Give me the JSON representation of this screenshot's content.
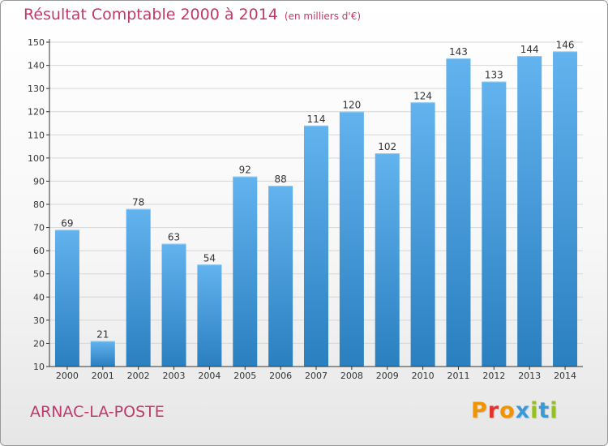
{
  "header": {
    "title": "Résultat Comptable 2000 à 2014",
    "unit": "(en milliers d'€)"
  },
  "footer": {
    "commune": "ARNAC-LA-POSTE",
    "brand": "Proxiti",
    "brand_colors": [
      "#f29400",
      "#e6332a",
      "#f29400",
      "#3a9ad9",
      "#95c11f",
      "#3a9ad9",
      "#95c11f"
    ]
  },
  "colors": {
    "title": "#c0396b",
    "bar_top": "#62b3ee",
    "bar_bottom": "#2a7fbf",
    "grid": "#d6d6d6",
    "axis": "#333333"
  },
  "chart_data": {
    "type": "bar",
    "title": "Résultat Comptable 2000 à 2014",
    "xlabel": "",
    "ylabel": "",
    "ylim": [
      10,
      150
    ],
    "yticks": [
      10,
      20,
      30,
      40,
      50,
      60,
      70,
      80,
      90,
      100,
      110,
      120,
      130,
      140,
      150
    ],
    "grid": true,
    "categories": [
      "2000",
      "2001",
      "2002",
      "2003",
      "2004",
      "2005",
      "2006",
      "2007",
      "2008",
      "2009",
      "2010",
      "2011",
      "2012",
      "2013",
      "2014"
    ],
    "values": [
      69,
      21,
      78,
      63,
      54,
      92,
      88,
      114,
      120,
      102,
      124,
      143,
      133,
      144,
      146
    ]
  }
}
